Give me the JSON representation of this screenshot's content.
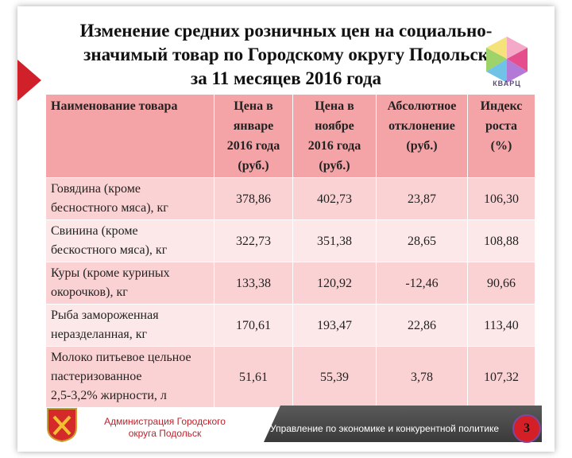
{
  "header": {
    "title_lines": [
      "Изменение средних розничных цен на социально-",
      "значимый товар по Городскому округу Подольск",
      "за 11 месяцев 2016 года"
    ],
    "logo": "КВАРЦ"
  },
  "table": {
    "columns": [
      [
        "Наименование  товара"
      ],
      [
        "Цена в",
        "январе",
        "2016 года",
        "(руб.)"
      ],
      [
        "Цена в",
        "ноябре",
        "2016 года",
        "(руб.)"
      ],
      [
        "Абсолютное",
        "отклонение",
        "(руб.)"
      ],
      [
        "Индекс",
        "роста",
        "(%)"
      ]
    ],
    "rows": [
      [
        [
          "Говядина (кроме",
          "бесностного мяса), кг"
        ],
        "378,86",
        "402,73",
        "23,87",
        "106,30"
      ],
      [
        [
          "Свинина (кроме",
          "бескостного мяса), кг"
        ],
        "322,73",
        "351,38",
        "28,65",
        "108,88"
      ],
      [
        [
          "Куры (кроме куриных",
          "окорочков), кг"
        ],
        "133,38",
        "120,92",
        "-12,46",
        "90,66"
      ],
      [
        [
          "Рыба замороженная",
          "неразделанная, кг"
        ],
        "170,61",
        "193,47",
        "22,86",
        "113,40"
      ],
      [
        [
          "Молоко питьевое цельное",
          "пастеризованное",
          "2,5-3,2% жирности, л"
        ],
        "51,61",
        "55,39",
        "3,78",
        "107,32"
      ]
    ]
  },
  "footer": {
    "administration_lines": [
      "Администрация Городского",
      "округа Подольск"
    ],
    "department": "Управление по экономике и конкурентной политике",
    "page_number": "3"
  }
}
